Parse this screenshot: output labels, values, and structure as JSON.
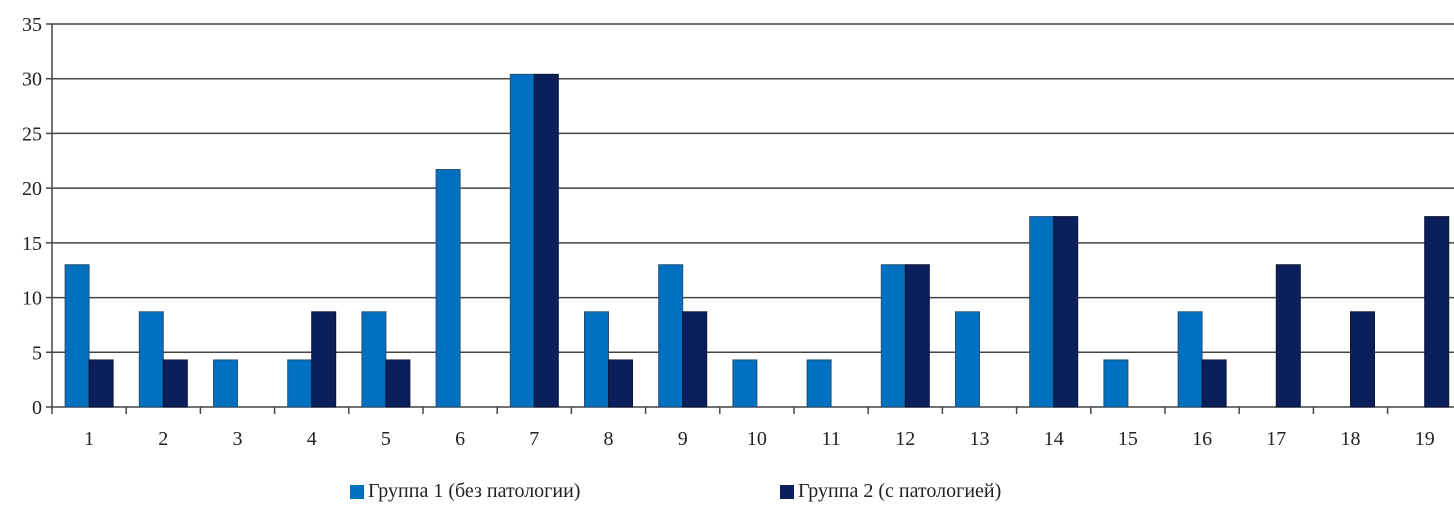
{
  "chart_data": {
    "type": "bar",
    "categories": [
      "1",
      "2",
      "3",
      "4",
      "5",
      "6",
      "7",
      "8",
      "9",
      "10",
      "11",
      "12",
      "13",
      "14",
      "15",
      "16",
      "17",
      "18",
      "19"
    ],
    "series": [
      {
        "name": "Группа 1 (без патологии)",
        "color": "#0070c0",
        "values": [
          13,
          8.7,
          4.3,
          4.3,
          8.7,
          21.7,
          30.4,
          8.7,
          13,
          4.3,
          4.3,
          13,
          8.7,
          17.4,
          4.3,
          8.7,
          0,
          0,
          0
        ]
      },
      {
        "name": "Группа 2 (с патологией)",
        "color": "#0a1f5c",
        "values": [
          4.3,
          4.3,
          0,
          8.7,
          4.3,
          0,
          30.4,
          4.3,
          8.7,
          0,
          0,
          13,
          0,
          17.4,
          0,
          4.3,
          13,
          8.7,
          17.4
        ]
      }
    ],
    "y_ticks": [
      "0",
      "5",
      "10",
      "15",
      "20",
      "25",
      "30",
      "35"
    ],
    "ylim": [
      0,
      35
    ],
    "grid": true,
    "legend_position": "bottom"
  }
}
